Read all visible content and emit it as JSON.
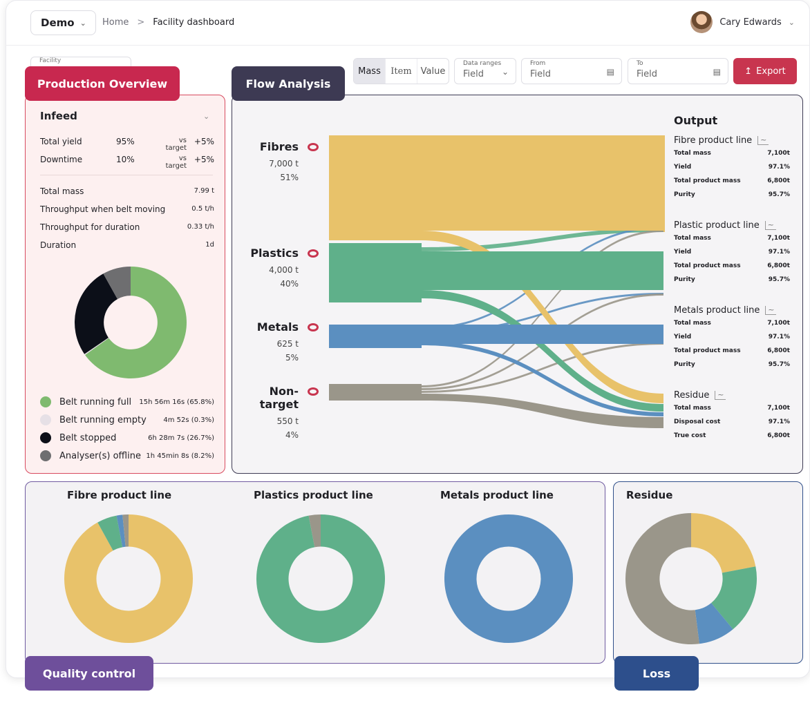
{
  "header": {
    "demo_label": "Demo",
    "breadcrumbs": [
      "Home",
      ">",
      "Facility dashboard"
    ],
    "user_name": "Cary Edwards"
  },
  "filters": {
    "facility_label": "Facility",
    "modes": [
      "Mass",
      "Item",
      "Value"
    ],
    "active_mode": "Mass",
    "data_ranges_label": "Data ranges",
    "data_ranges_value": "Field",
    "from_label": "From",
    "from_value": "Field",
    "to_label": "To",
    "to_value": "Field",
    "export_label": "Export"
  },
  "tags": {
    "production": "Production Overview",
    "flow": "Flow Analysis",
    "quality": "Quality control",
    "loss": "Loss"
  },
  "colors": {
    "fibres": "#e8c26a",
    "plastics": "#5fb08a",
    "metals": "#5b8fc0",
    "nontarget": "#9a968a",
    "accent": "#c8354f"
  },
  "production": {
    "title": "Infeed",
    "kpis": [
      {
        "label": "Total yield",
        "value": "95%",
        "vs": "vs target",
        "delta": "+5%"
      },
      {
        "label": "Downtime",
        "value": "10%",
        "vs": "vs target",
        "delta": "+5%"
      }
    ],
    "stats": [
      {
        "label": "Total mass",
        "value": "7.99 t"
      },
      {
        "label": "Throughput when belt moving",
        "value": "0.5 t/h"
      },
      {
        "label": "Throughput for duration",
        "value": "0.33 t/h"
      },
      {
        "label": "Duration",
        "value": "1d"
      }
    ],
    "legend": [
      {
        "label": "Belt running full",
        "value": "15h 56m 16s (65.8%)",
        "color": "#7fba6f"
      },
      {
        "label": "Belt running empty",
        "value": "4m 52s (0.3%)",
        "color": "#e6e0e6"
      },
      {
        "label": "Belt stopped",
        "value": "6h 28m 7s (26.7%)",
        "color": "#0c0f18"
      },
      {
        "label": "Analyser(s) offline",
        "value": "1h 45min 8s (8.2%)",
        "color": "#6e6e70"
      }
    ]
  },
  "flow": {
    "sources": [
      {
        "name": "Fibres",
        "mass": "7,000 t",
        "share": "51%"
      },
      {
        "name": "Plastics",
        "mass": "4,000 t",
        "share": "40%"
      },
      {
        "name": "Metals",
        "mass": "625 t",
        "share": "5%"
      },
      {
        "name": "Non-target",
        "mass": "550 t",
        "share": "4%"
      }
    ],
    "output_title": "Output",
    "outputs": [
      {
        "name": "Fibre product line",
        "rows": [
          [
            "Total mass",
            "7,100t"
          ],
          [
            "Yield",
            "97.1%"
          ],
          [
            "Total product mass",
            "6,800t"
          ],
          [
            "Purity",
            "95.7%"
          ]
        ]
      },
      {
        "name": "Plastic product line",
        "rows": [
          [
            "Total mass",
            "7,100t"
          ],
          [
            "Yield",
            "97.1%"
          ],
          [
            "Total product mass",
            "6,800t"
          ],
          [
            "Purity",
            "95.7%"
          ]
        ]
      },
      {
        "name": "Metals product line",
        "rows": [
          [
            "Total mass",
            "7,100t"
          ],
          [
            "Yield",
            "97.1%"
          ],
          [
            "Total product mass",
            "6,800t"
          ],
          [
            "Purity",
            "95.7%"
          ]
        ]
      },
      {
        "name": "Residue",
        "rows": [
          [
            "Total mass",
            "7,100t"
          ],
          [
            "Disposal cost",
            "97.1%"
          ],
          [
            "True cost",
            "6,800t"
          ]
        ]
      }
    ]
  },
  "quality": {
    "charts": [
      {
        "title": "Fibre product line",
        "slices": [
          92,
          5,
          1.5,
          1.5
        ]
      },
      {
        "title": "Plastics product line",
        "slices": [
          0,
          97,
          0,
          3
        ]
      },
      {
        "title": "Metals product line",
        "slices": [
          0,
          0,
          100,
          0
        ]
      }
    ]
  },
  "loss": {
    "title": "Residue",
    "slices": [
      22,
      17,
      9,
      52
    ]
  },
  "infeed_chart": {
    "slices": [
      65.8,
      0.3,
      26.7,
      8.2
    ]
  }
}
